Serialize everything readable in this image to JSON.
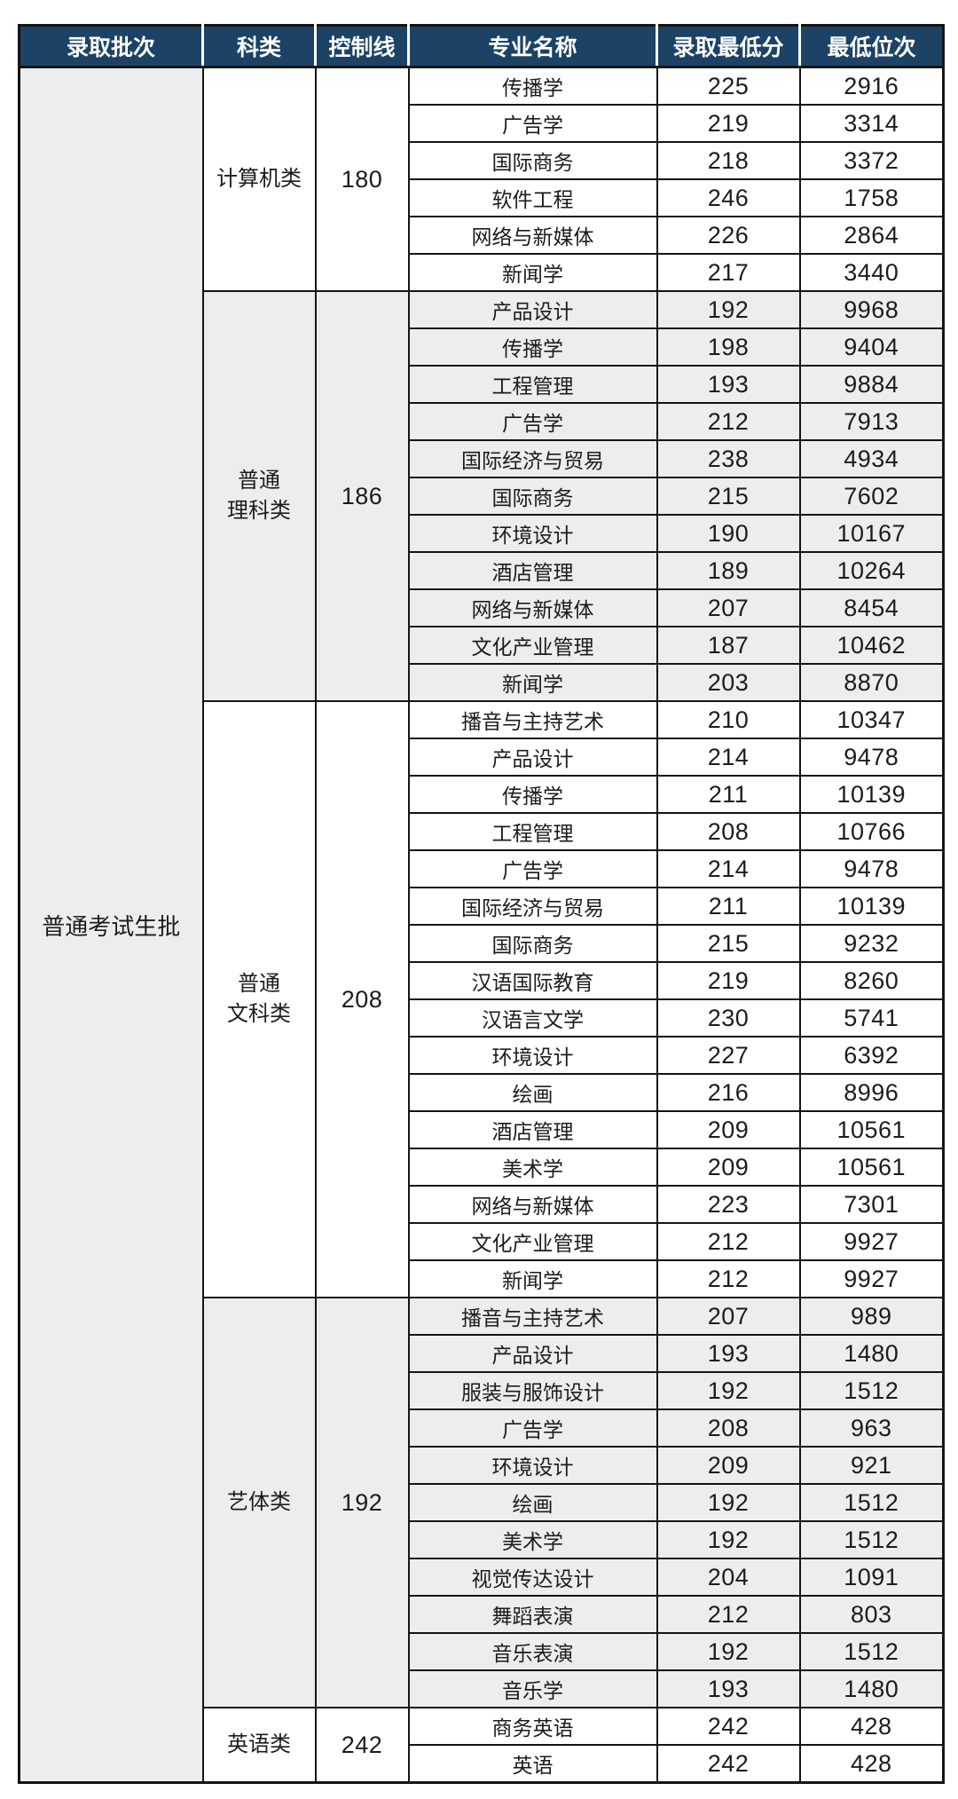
{
  "table": {
    "batch_label": "普通考试生批",
    "columns": [
      "录取批次",
      "科类",
      "控制线",
      "专业名称",
      "录取最低分",
      "最低位次"
    ],
    "colors": {
      "header_bg": "#1C4365",
      "header_text": "#FFFFFF",
      "border": "#141414",
      "shaded_row_bg": "#ECEDEE",
      "row_bg": "#FFFFFF",
      "text": "#1C1C1C"
    },
    "groups": [
      {
        "category": "计算机类",
        "control_line": "180",
        "shaded": false,
        "majors": [
          {
            "name": "传播学",
            "min_score": "225",
            "min_rank": "2916"
          },
          {
            "name": "广告学",
            "min_score": "219",
            "min_rank": "3314"
          },
          {
            "name": "国际商务",
            "min_score": "218",
            "min_rank": "3372"
          },
          {
            "name": "软件工程",
            "min_score": "246",
            "min_rank": "1758"
          },
          {
            "name": "网络与新媒体",
            "min_score": "226",
            "min_rank": "2864"
          },
          {
            "name": "新闻学",
            "min_score": "217",
            "min_rank": "3440"
          }
        ]
      },
      {
        "category": "普通\n理科类",
        "control_line": "186",
        "shaded": true,
        "majors": [
          {
            "name": "产品设计",
            "min_score": "192",
            "min_rank": "9968"
          },
          {
            "name": "传播学",
            "min_score": "198",
            "min_rank": "9404"
          },
          {
            "name": "工程管理",
            "min_score": "193",
            "min_rank": "9884"
          },
          {
            "name": "广告学",
            "min_score": "212",
            "min_rank": "7913"
          },
          {
            "name": "国际经济与贸易",
            "min_score": "238",
            "min_rank": "4934"
          },
          {
            "name": "国际商务",
            "min_score": "215",
            "min_rank": "7602"
          },
          {
            "name": "环境设计",
            "min_score": "190",
            "min_rank": "10167"
          },
          {
            "name": "酒店管理",
            "min_score": "189",
            "min_rank": "10264"
          },
          {
            "name": "网络与新媒体",
            "min_score": "207",
            "min_rank": "8454"
          },
          {
            "name": "文化产业管理",
            "min_score": "187",
            "min_rank": "10462"
          },
          {
            "name": "新闻学",
            "min_score": "203",
            "min_rank": "8870"
          }
        ]
      },
      {
        "category": "普通\n文科类",
        "control_line": "208",
        "shaded": false,
        "majors": [
          {
            "name": "播音与主持艺术",
            "min_score": "210",
            "min_rank": "10347"
          },
          {
            "name": "产品设计",
            "min_score": "214",
            "min_rank": "9478"
          },
          {
            "name": "传播学",
            "min_score": "211",
            "min_rank": "10139"
          },
          {
            "name": "工程管理",
            "min_score": "208",
            "min_rank": "10766"
          },
          {
            "name": "广告学",
            "min_score": "214",
            "min_rank": "9478"
          },
          {
            "name": "国际经济与贸易",
            "min_score": "211",
            "min_rank": "10139"
          },
          {
            "name": "国际商务",
            "min_score": "215",
            "min_rank": "9232"
          },
          {
            "name": "汉语国际教育",
            "min_score": "219",
            "min_rank": "8260"
          },
          {
            "name": "汉语言文学",
            "min_score": "230",
            "min_rank": "5741"
          },
          {
            "name": "环境设计",
            "min_score": "227",
            "min_rank": "6392"
          },
          {
            "name": "绘画",
            "min_score": "216",
            "min_rank": "8996"
          },
          {
            "name": "酒店管理",
            "min_score": "209",
            "min_rank": "10561"
          },
          {
            "name": "美术学",
            "min_score": "209",
            "min_rank": "10561"
          },
          {
            "name": "网络与新媒体",
            "min_score": "223",
            "min_rank": "7301"
          },
          {
            "name": "文化产业管理",
            "min_score": "212",
            "min_rank": "9927"
          },
          {
            "name": "新闻学",
            "min_score": "212",
            "min_rank": "9927"
          }
        ]
      },
      {
        "category": "艺体类",
        "control_line": "192",
        "shaded": true,
        "majors": [
          {
            "name": "播音与主持艺术",
            "min_score": "207",
            "min_rank": "989"
          },
          {
            "name": "产品设计",
            "min_score": "193",
            "min_rank": "1480"
          },
          {
            "name": "服装与服饰设计",
            "min_score": "192",
            "min_rank": "1512"
          },
          {
            "name": "广告学",
            "min_score": "208",
            "min_rank": "963"
          },
          {
            "name": "环境设计",
            "min_score": "209",
            "min_rank": "921"
          },
          {
            "name": "绘画",
            "min_score": "192",
            "min_rank": "1512"
          },
          {
            "name": "美术学",
            "min_score": "192",
            "min_rank": "1512"
          },
          {
            "name": "视觉传达设计",
            "min_score": "204",
            "min_rank": "1091"
          },
          {
            "name": "舞蹈表演",
            "min_score": "212",
            "min_rank": "803"
          },
          {
            "name": "音乐表演",
            "min_score": "192",
            "min_rank": "1512"
          },
          {
            "name": "音乐学",
            "min_score": "193",
            "min_rank": "1480"
          }
        ]
      },
      {
        "category": "英语类",
        "control_line": "242",
        "shaded": false,
        "majors": [
          {
            "name": "商务英语",
            "min_score": "242",
            "min_rank": "428"
          },
          {
            "name": "英语",
            "min_score": "242",
            "min_rank": "428"
          }
        ]
      }
    ]
  }
}
